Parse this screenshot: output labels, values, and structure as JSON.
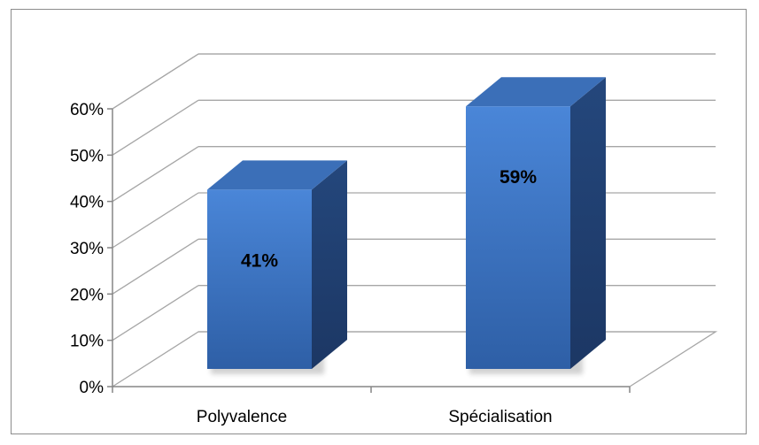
{
  "chart_data": {
    "type": "bar",
    "style": "3d-column",
    "categories": [
      "Polyvalence",
      "Spécialisation"
    ],
    "values": [
      41,
      59
    ],
    "data_labels": [
      "41%",
      "59%"
    ],
    "y_ticks": [
      "0%",
      "10%",
      "20%",
      "30%",
      "40%",
      "50%",
      "60%"
    ],
    "ylim": [
      0,
      60
    ],
    "grid": true,
    "legend": "none",
    "colors": {
      "bar_front_top": "#4a86d8",
      "bar_front_bottom": "#2e5fa6",
      "bar_side": "#24477c",
      "bar_top": "#3b6fb8",
      "grid": "#a6a6a6",
      "axis": "#868686"
    }
  }
}
